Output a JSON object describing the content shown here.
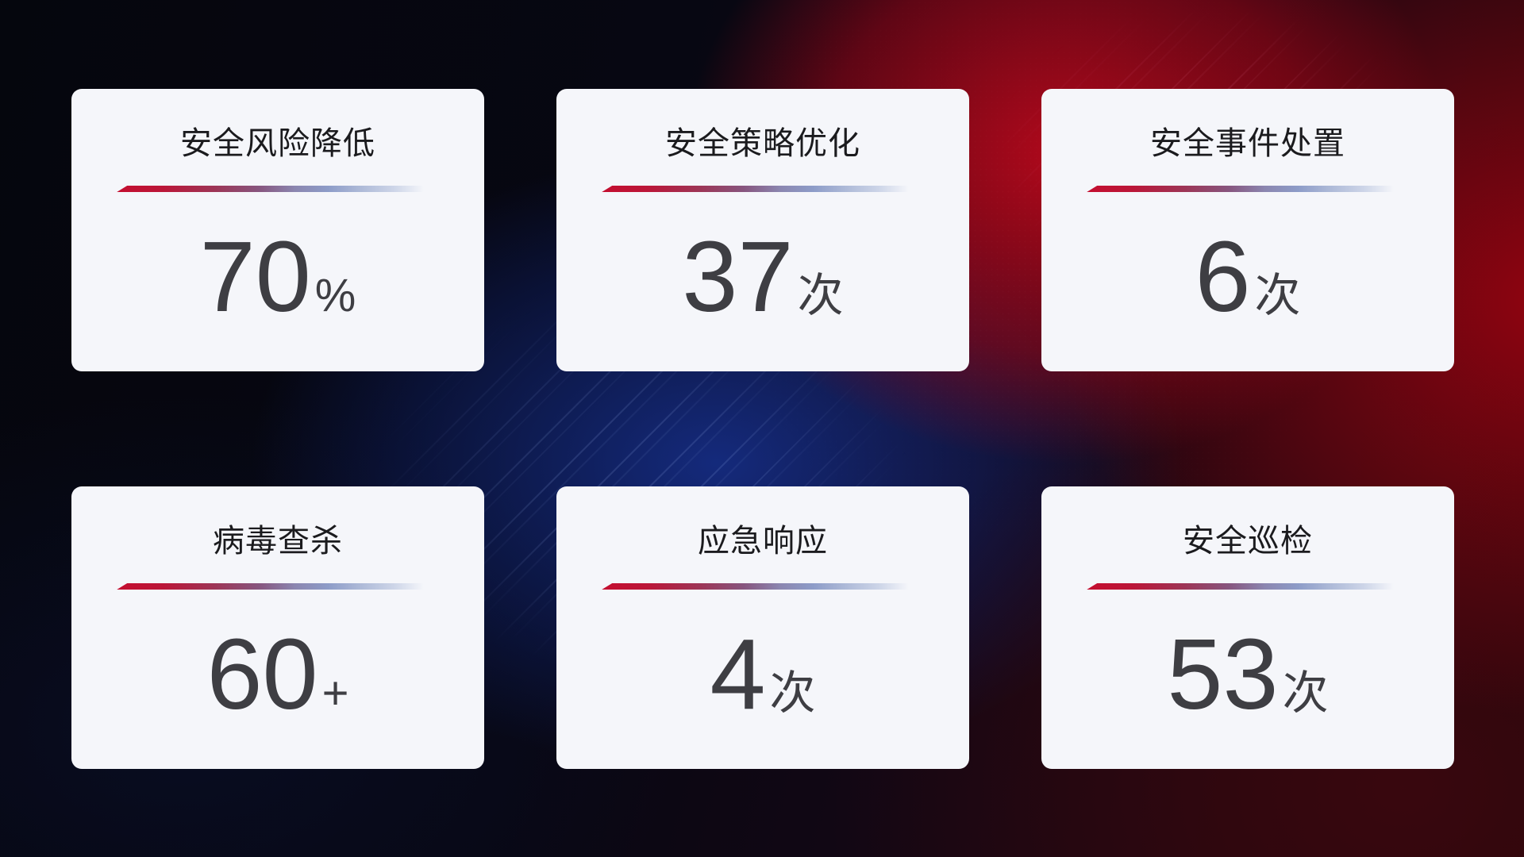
{
  "cards": [
    {
      "title": "安全风险降低",
      "value": "70",
      "unit": "%"
    },
    {
      "title": "安全策略优化",
      "value": "37",
      "unit": "次"
    },
    {
      "title": "安全事件处置",
      "value": "6",
      "unit": "次"
    },
    {
      "title": "病毒查杀",
      "value": "60",
      "unit": "+"
    },
    {
      "title": "应急响应",
      "value": "4",
      "unit": "次"
    },
    {
      "title": "安全巡检",
      "value": "53",
      "unit": "次"
    }
  ],
  "colors": {
    "card_background": "#f5f6fa",
    "title_text": "#1b1b1e",
    "value_text": "#3e3e43",
    "divider_red": "#c40e2f",
    "divider_blue": "#8d9cc8",
    "background_red_glow": "#ba091c",
    "background_blue_glow": "#16308e",
    "background_base": "#06060d"
  }
}
